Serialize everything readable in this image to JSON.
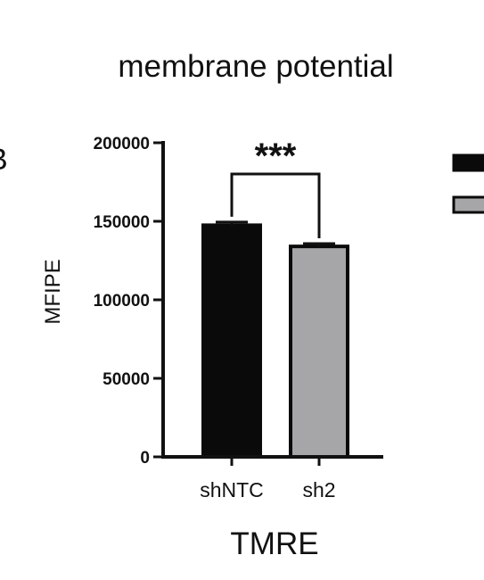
{
  "chart_data": {
    "type": "bar",
    "title": "membrane potential",
    "xlabel": "TMRE",
    "ylabel": "MFIPE",
    "ylim": [
      0,
      200000
    ],
    "yticks": [
      0,
      50000,
      100000,
      150000,
      200000
    ],
    "ytick_labels": [
      "0",
      "50000",
      "100000",
      "150000",
      "200000"
    ],
    "categories": [
      "shNTC",
      "sh2"
    ],
    "values": [
      147500,
      134000
    ],
    "errors": [
      2000,
      1800
    ],
    "colors": [
      "#0a0a0a",
      "#a6a6a8"
    ],
    "significance": {
      "between": [
        "shNTC",
        "sh2"
      ],
      "label": "***"
    },
    "panel_letter_fragment": "B",
    "legend": {
      "position": "right",
      "entries_visible": false,
      "colors": [
        "#0a0a0a",
        "#a6a6a8"
      ]
    }
  }
}
